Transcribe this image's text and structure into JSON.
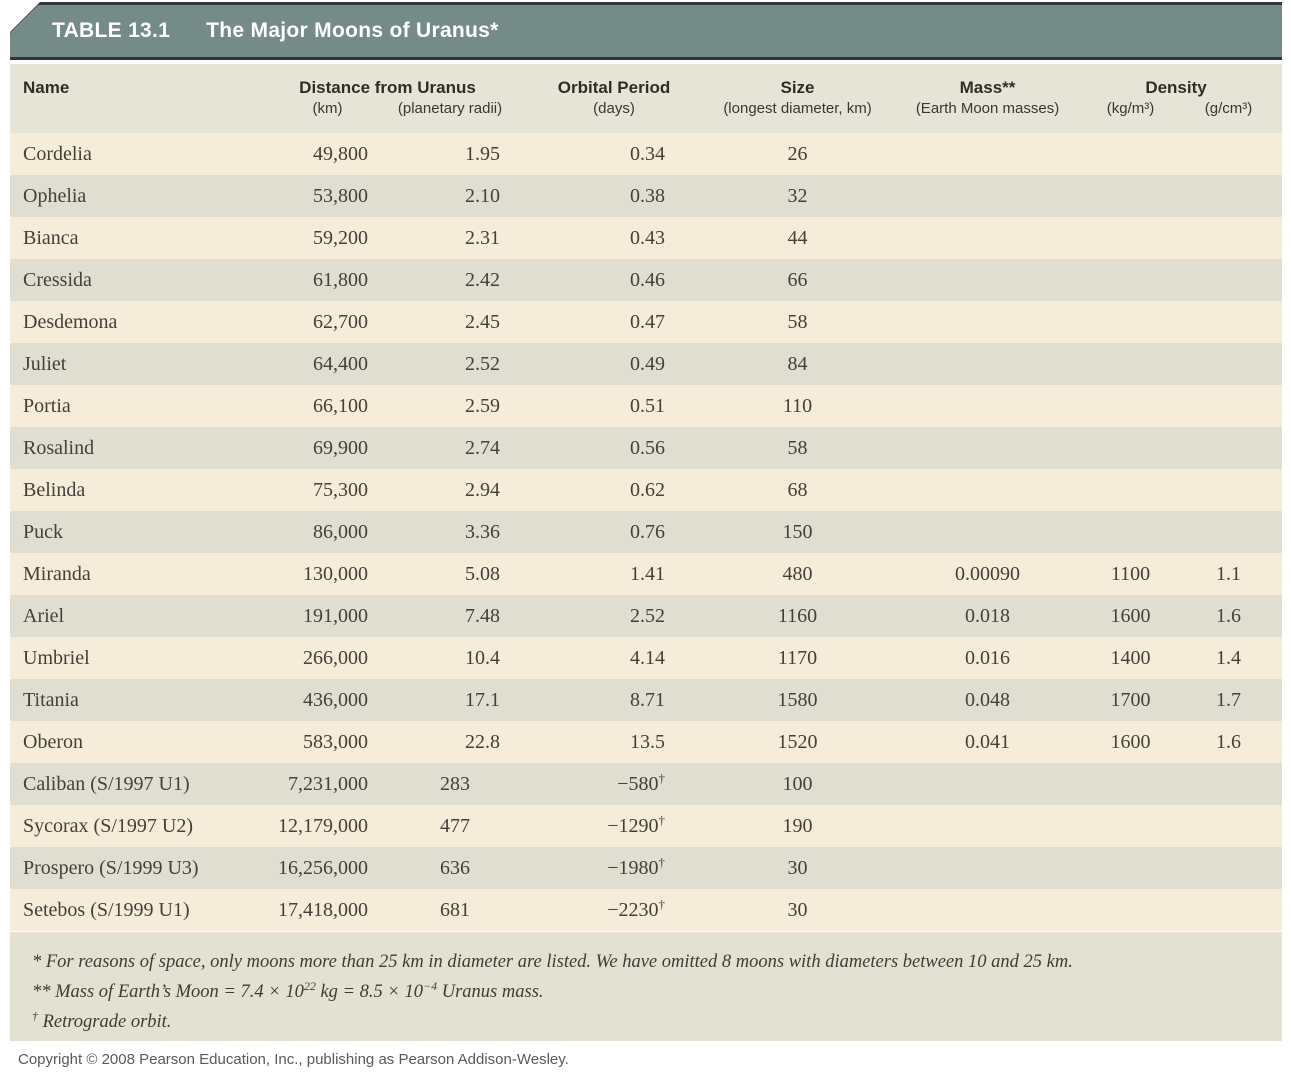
{
  "table": {
    "label": "TABLE 13.1",
    "title": "The Major Moons of Uranus*",
    "dagger": "†",
    "colors": {
      "titlebar": "#748b88",
      "titlebar_rule": "#31383a",
      "header_bg": "#e6e4d6",
      "row_cream": "#f5edda",
      "row_green": "#dfded0",
      "footnote_bg": "#e3e1d2",
      "title_text": "#ffffff",
      "body_text": "#44403a"
    },
    "columns": {
      "name": "Name",
      "distance_group": "Distance from Uranus",
      "distance_km_sub": "(km)",
      "distance_radii_sub": "(planetary radii)",
      "period": "Orbital Period",
      "period_sub": "(days)",
      "size": "Size",
      "size_sub": "(longest diameter, km)",
      "mass": "Mass**",
      "mass_sub": "(Earth Moon masses)",
      "density": "Density",
      "density_kg_sub": "(kg/m³)",
      "density_g_sub": "(g/cm³)"
    },
    "rows": [
      {
        "name": "Cordelia",
        "km": "49,800",
        "radii": "1.95",
        "period": "0.34",
        "retrograde": false,
        "size": "26",
        "mass": "",
        "kg_m3": "",
        "g_cm3": ""
      },
      {
        "name": "Ophelia",
        "km": "53,800",
        "radii": "2.10",
        "period": "0.38",
        "retrograde": false,
        "size": "32",
        "mass": "",
        "kg_m3": "",
        "g_cm3": ""
      },
      {
        "name": "Bianca",
        "km": "59,200",
        "radii": "2.31",
        "period": "0.43",
        "retrograde": false,
        "size": "44",
        "mass": "",
        "kg_m3": "",
        "g_cm3": ""
      },
      {
        "name": "Cressida",
        "km": "61,800",
        "radii": "2.42",
        "period": "0.46",
        "retrograde": false,
        "size": "66",
        "mass": "",
        "kg_m3": "",
        "g_cm3": ""
      },
      {
        "name": "Desdemona",
        "km": "62,700",
        "radii": "2.45",
        "period": "0.47",
        "retrograde": false,
        "size": "58",
        "mass": "",
        "kg_m3": "",
        "g_cm3": ""
      },
      {
        "name": "Juliet",
        "km": "64,400",
        "radii": "2.52",
        "period": "0.49",
        "retrograde": false,
        "size": "84",
        "mass": "",
        "kg_m3": "",
        "g_cm3": ""
      },
      {
        "name": "Portia",
        "km": "66,100",
        "radii": "2.59",
        "period": "0.51",
        "retrograde": false,
        "size": "110",
        "mass": "",
        "kg_m3": "",
        "g_cm3": ""
      },
      {
        "name": "Rosalind",
        "km": "69,900",
        "radii": "2.74",
        "period": "0.56",
        "retrograde": false,
        "size": "58",
        "mass": "",
        "kg_m3": "",
        "g_cm3": ""
      },
      {
        "name": "Belinda",
        "km": "75,300",
        "radii": "2.94",
        "period": "0.62",
        "retrograde": false,
        "size": "68",
        "mass": "",
        "kg_m3": "",
        "g_cm3": ""
      },
      {
        "name": "Puck",
        "km": "86,000",
        "radii": "3.36",
        "period": "0.76",
        "retrograde": false,
        "size": "150",
        "mass": "",
        "kg_m3": "",
        "g_cm3": ""
      },
      {
        "name": "Miranda",
        "km": "130,000",
        "radii": "5.08",
        "period": "1.41",
        "retrograde": false,
        "size": "480",
        "mass": "0.00090",
        "kg_m3": "1100",
        "g_cm3": "1.1"
      },
      {
        "name": "Ariel",
        "km": "191,000",
        "radii": "7.48",
        "period": "2.52",
        "retrograde": false,
        "size": "1160",
        "mass": "0.018",
        "kg_m3": "1600",
        "g_cm3": "1.6"
      },
      {
        "name": "Umbriel",
        "km": "266,000",
        "radii": "10.4",
        "period": "4.14",
        "retrograde": false,
        "size": "1170",
        "mass": "0.016",
        "kg_m3": "1400",
        "g_cm3": "1.4"
      },
      {
        "name": "Titania",
        "km": "436,000",
        "radii": "17.1",
        "period": "8.71",
        "retrograde": false,
        "size": "1580",
        "mass": "0.048",
        "kg_m3": "1700",
        "g_cm3": "1.7"
      },
      {
        "name": "Oberon",
        "km": "583,000",
        "radii": "22.8",
        "period": "13.5",
        "retrograde": false,
        "size": "1520",
        "mass": "0.041",
        "kg_m3": "1600",
        "g_cm3": "1.6"
      },
      {
        "name": "Caliban (S/1997 U1)",
        "km": "7,231,000",
        "radii": "283",
        "period": "−580",
        "retrograde": true,
        "size": "100",
        "mass": "",
        "kg_m3": "",
        "g_cm3": ""
      },
      {
        "name": "Sycorax (S/1997 U2)",
        "km": "12,179,000",
        "radii": "477",
        "period": "−1290",
        "retrograde": true,
        "size": "190",
        "mass": "",
        "kg_m3": "",
        "g_cm3": ""
      },
      {
        "name": "Prospero (S/1999 U3)",
        "km": "16,256,000",
        "radii": "636",
        "period": "−1980",
        "retrograde": true,
        "size": "30",
        "mass": "",
        "kg_m3": "",
        "g_cm3": ""
      },
      {
        "name": "Setebos (S/1999 U1)",
        "km": "17,418,000",
        "radii": "681",
        "period": "−2230",
        "retrograde": true,
        "size": "30",
        "mass": "",
        "kg_m3": "",
        "g_cm3": ""
      }
    ]
  },
  "footnotes": {
    "f1_marker": "*",
    "f1_text": "For reasons of space, only moons more than 25 km in diameter are listed. We have omitted 8 moons with diameters between 10 and 25 km.",
    "f2_marker": "**",
    "f2_pre": "Mass of Earth’s Moon = 7.4 × 10",
    "f2_exp1": "22",
    "f2_mid": " kg = 8.5 × 10",
    "f2_exp2": "−4",
    "f2_post": " Uranus mass.",
    "f3_marker": "†",
    "f3_text": "Retrograde orbit."
  },
  "copyright": "Copyright © 2008 Pearson Education, Inc., publishing as Pearson Addison-Wesley."
}
